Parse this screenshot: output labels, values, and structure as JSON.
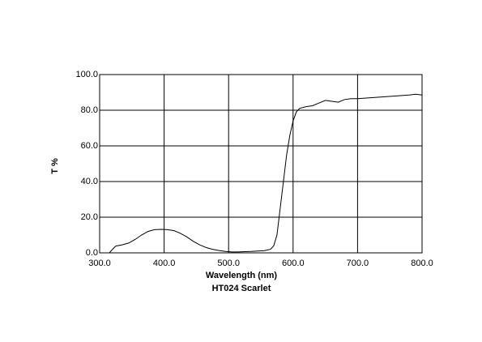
{
  "chart_data": {
    "type": "line",
    "xlabel": "Wavelength (nm)",
    "title": "HT024 Scarlet",
    "ylabel": "T %",
    "x": [
      315,
      320,
      325,
      335,
      345,
      355,
      365,
      375,
      385,
      395,
      405,
      415,
      425,
      435,
      445,
      455,
      465,
      475,
      485,
      495,
      505,
      515,
      525,
      535,
      545,
      555,
      565,
      570,
      575,
      580,
      585,
      590,
      595,
      600,
      605,
      610,
      620,
      630,
      640,
      650,
      660,
      670,
      680,
      690,
      700,
      720,
      740,
      760,
      780,
      790,
      800
    ],
    "series": [
      {
        "name": "HT024 Scarlet",
        "color": "#000000",
        "values": [
          0,
          2,
          3.8,
          4.5,
          5.5,
          7.5,
          10,
          12,
          13,
          13.2,
          13,
          12.5,
          11,
          9,
          6.5,
          4.5,
          3,
          2,
          1.3,
          0.8,
          0.5,
          0.5,
          0.7,
          0.8,
          1,
          1.2,
          2,
          4,
          10,
          25,
          40,
          55,
          66,
          74,
          79,
          81,
          82,
          82.5,
          84,
          85.5,
          85,
          84.5,
          86,
          86.5,
          86.5,
          87,
          87.5,
          88,
          88.5,
          89,
          88.5
        ]
      }
    ],
    "xlim": [
      300,
      800
    ],
    "ylim": [
      0,
      100
    ],
    "xticks": [
      {
        "value": 300,
        "label": "300.0"
      },
      {
        "value": 400,
        "label": "400.0"
      },
      {
        "value": 500,
        "label": "500.0"
      },
      {
        "value": 600,
        "label": "600.0"
      },
      {
        "value": 700,
        "label": "700.0"
      },
      {
        "value": 800,
        "label": "800.0"
      }
    ],
    "yticks": [
      {
        "value": 0,
        "label": "0.0"
      },
      {
        "value": 20,
        "label": "20.0"
      },
      {
        "value": 40,
        "label": "40.0"
      },
      {
        "value": 60,
        "label": "60.0"
      },
      {
        "value": 80,
        "label": "80.0"
      },
      {
        "value": 100,
        "label": "100.0"
      }
    ],
    "grid": true
  }
}
